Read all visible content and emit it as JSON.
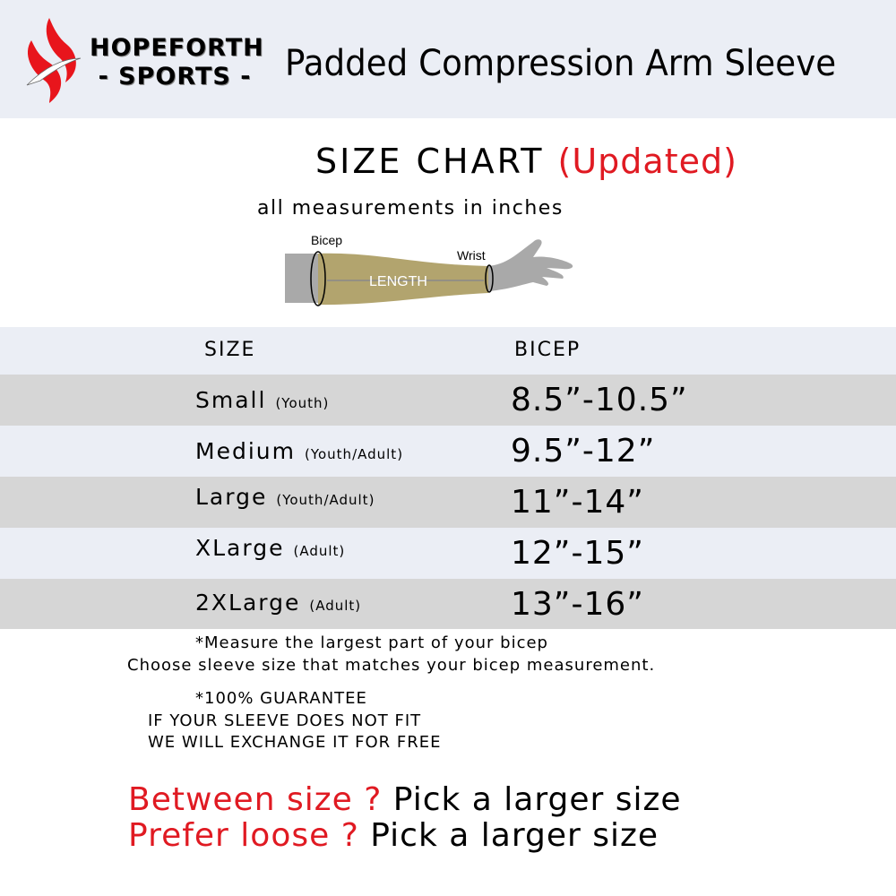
{
  "brand": {
    "line1": "HOPEFORTH",
    "line2": "- SPORTS -"
  },
  "product_title": "Padded Compression Arm Sleeve",
  "title": {
    "main": "SIZE CHART",
    "note": "(Updated)"
  },
  "units": "all measurements in inches",
  "diagram": {
    "bicep": "Bicep",
    "wrist": "Wrist",
    "length": "LENGTH"
  },
  "table": {
    "headers": [
      "SIZE",
      "BICEP"
    ],
    "rows": [
      {
        "size": "Small",
        "fit": "(Youth)",
        "bicep": "8.5”-10.5”"
      },
      {
        "size": "Medium",
        "fit": "(Youth/Adult)",
        "bicep": "9.5”-12”"
      },
      {
        "size": "Large",
        "fit": "(Youth/Adult)",
        "bicep": "11”-14”"
      },
      {
        "size": "XLarge",
        "fit": "(Adult)",
        "bicep": "12”-15”"
      },
      {
        "size": "2XLarge",
        "fit": "(Adult)",
        "bicep": "13”-16”"
      }
    ]
  },
  "notes": {
    "measure": "*Measure the largest part of your bicep",
    "choose": "Choose sleeve size that matches your bicep measurement.",
    "guarantee1": "*100% GUARANTEE",
    "guarantee2": "IF YOUR SLEEVE DOES NOT FIT",
    "guarantee3": "WE WILL EXCHANGE IT FOR FREE"
  },
  "tips": [
    {
      "q": "Between size ?",
      "a": "Pick a larger size"
    },
    {
      "q": "Prefer loose ?",
      "a": "Pick a larger size"
    }
  ],
  "colors": {
    "accent": "#e01a22",
    "header_bg": "#ebeef5",
    "row_gray": "#d6d6d6",
    "row_light": "#ebeef5",
    "sleeve": "#b2a46e"
  }
}
